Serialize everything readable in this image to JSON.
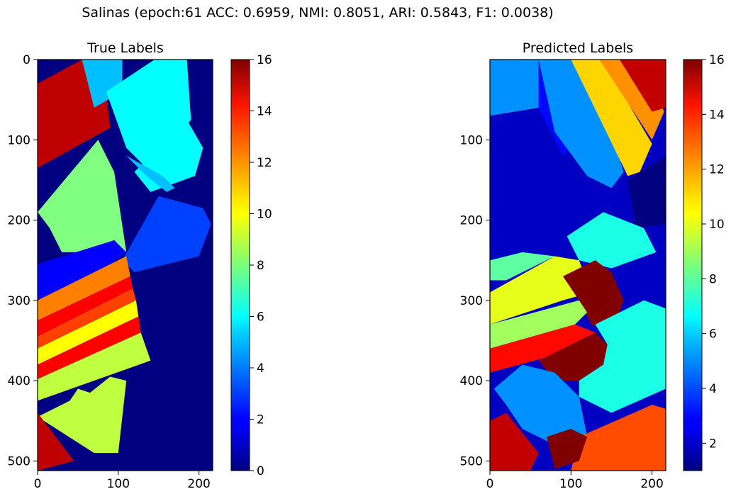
{
  "suptitle": "Salinas (epoch:61 ACC: 0.6959, NMI: 0.8051, ARI: 0.5843, F1: 0.0038)",
  "colormap": "jet",
  "chart_data": [
    {
      "type": "heatmap",
      "title": "True Labels",
      "xlim": [
        0,
        217
      ],
      "ylim": [
        512,
        0
      ],
      "xticks": [
        "0",
        "100",
        "200"
      ],
      "yticks": [
        "0",
        "100",
        "200",
        "300",
        "400",
        "500"
      ],
      "colorbar": {
        "min": 0,
        "max": 16,
        "ticks": [
          "0",
          "2",
          "4",
          "6",
          "8",
          "10",
          "12",
          "14",
          "16"
        ]
      },
      "background_label": 0,
      "regions": [
        {
          "label": 15,
          "points": [
            [
              0,
              30
            ],
            [
              55,
              0
            ],
            [
              80,
              0
            ],
            [
              90,
              85
            ],
            [
              0,
              135
            ]
          ]
        },
        {
          "label": 8,
          "points": [
            [
              0,
              190
            ],
            [
              75,
              100
            ],
            [
              95,
              140
            ],
            [
              110,
              240
            ],
            [
              30,
              240
            ],
            [
              15,
              210
            ]
          ]
        },
        {
          "label": 5,
          "points": [
            [
              55,
              0
            ],
            [
              105,
              0
            ],
            [
              105,
              40
            ],
            [
              70,
              60
            ]
          ]
        },
        {
          "label": 6,
          "points": [
            [
              85,
              40
            ],
            [
              145,
              0
            ],
            [
              185,
              0
            ],
            [
              190,
              75
            ],
            [
              140,
              140
            ],
            [
              110,
              110
            ]
          ]
        },
        {
          "label": 6,
          "points": [
            [
              120,
              140
            ],
            [
              185,
              75
            ],
            [
              205,
              110
            ],
            [
              195,
              145
            ],
            [
              140,
              165
            ]
          ]
        },
        {
          "label": 5,
          "points": [
            [
              110,
              120
            ],
            [
              155,
              145
            ],
            [
              170,
              160
            ],
            [
              160,
              165
            ],
            [
              135,
              145
            ]
          ]
        },
        {
          "label": 3,
          "points": [
            [
              105,
              250
            ],
            [
              150,
              170
            ],
            [
              205,
              185
            ],
            [
              215,
              205
            ],
            [
              200,
              245
            ],
            [
              120,
              265
            ]
          ]
        },
        {
          "label": 2,
          "points": [
            [
              0,
              255
            ],
            [
              95,
              225
            ],
            [
              110,
              240
            ],
            [
              90,
              255
            ],
            [
              0,
              310
            ]
          ]
        },
        {
          "label": 12,
          "points": [
            [
              0,
              300
            ],
            [
              110,
              245
            ],
            [
              115,
              270
            ],
            [
              0,
              325
            ]
          ]
        },
        {
          "label": 14,
          "points": [
            [
              0,
              325
            ],
            [
              115,
              270
            ],
            [
              118,
              285
            ],
            [
              0,
              345
            ]
          ]
        },
        {
          "label": 13,
          "points": [
            [
              0,
              345
            ],
            [
              118,
              285
            ],
            [
              122,
              300
            ],
            [
              0,
              360
            ]
          ]
        },
        {
          "label": 10,
          "points": [
            [
              0,
              360
            ],
            [
              122,
              300
            ],
            [
              125,
              320
            ],
            [
              0,
              380
            ]
          ]
        },
        {
          "label": 14,
          "points": [
            [
              0,
              380
            ],
            [
              125,
              320
            ],
            [
              128,
              340
            ],
            [
              0,
              398
            ]
          ]
        },
        {
          "label": 9,
          "points": [
            [
              0,
              398
            ],
            [
              128,
              340
            ],
            [
              140,
              375
            ],
            [
              0,
              425
            ]
          ]
        },
        {
          "label": 9,
          "points": [
            [
              0,
              445
            ],
            [
              40,
              425
            ],
            [
              50,
              410
            ],
            [
              65,
              415
            ],
            [
              90,
              395
            ],
            [
              110,
              400
            ],
            [
              100,
              490
            ],
            [
              70,
              490
            ]
          ]
        },
        {
          "label": 15,
          "points": [
            [
              0,
              440
            ],
            [
              45,
              500
            ],
            [
              0,
              512
            ]
          ]
        }
      ]
    },
    {
      "type": "heatmap",
      "title": "Predicted Labels",
      "xlim": [
        0,
        217
      ],
      "ylim": [
        512,
        0
      ],
      "xticks": [
        "0",
        "100",
        "200"
      ],
      "yticks": [
        "100",
        "200",
        "300",
        "400",
        "500"
      ],
      "colorbar": {
        "min": 1,
        "max": 16,
        "ticks": [
          "2",
          "4",
          "6",
          "8",
          "10",
          "12",
          "14",
          "16"
        ]
      },
      "background_label": 2,
      "regions": [
        {
          "label": 3,
          "points": [
            [
              60,
              0
            ],
            [
              150,
              0
            ],
            [
              150,
              70
            ],
            [
              120,
              80
            ],
            [
              90,
              120
            ],
            [
              60,
              60
            ]
          ]
        },
        {
          "label": 5,
          "points": [
            [
              0,
              0
            ],
            [
              60,
              0
            ],
            [
              60,
              60
            ],
            [
              0,
              70
            ]
          ]
        },
        {
          "label": 5,
          "points": [
            [
              60,
              0
            ],
            [
              100,
              0
            ],
            [
              110,
              15
            ],
            [
              140,
              60
            ],
            [
              165,
              140
            ],
            [
              150,
              160
            ],
            [
              120,
              145
            ],
            [
              80,
              90
            ]
          ]
        },
        {
          "label": 11,
          "points": [
            [
              100,
              0
            ],
            [
              135,
              0
            ],
            [
              165,
              45
            ],
            [
              200,
              105
            ],
            [
              185,
              140
            ],
            [
              170,
              145
            ]
          ]
        },
        {
          "label": 12,
          "points": [
            [
              135,
              0
            ],
            [
              160,
              0
            ],
            [
              200,
              30
            ],
            [
              215,
              65
            ],
            [
              200,
              100
            ]
          ]
        },
        {
          "label": 15,
          "points": [
            [
              160,
              0
            ],
            [
              217,
              0
            ],
            [
              217,
              60
            ],
            [
              200,
              65
            ]
          ]
        },
        {
          "label": 1,
          "points": [
            [
              170,
              150
            ],
            [
              217,
              120
            ],
            [
              217,
              205
            ],
            [
              180,
              210
            ]
          ]
        },
        {
          "label": 7,
          "points": [
            [
              95,
              220
            ],
            [
              140,
              190
            ],
            [
              190,
              210
            ],
            [
              205,
              240
            ],
            [
              150,
              260
            ],
            [
              110,
              250
            ]
          ]
        },
        {
          "label": 10,
          "points": [
            [
              0,
              290
            ],
            [
              80,
              245
            ],
            [
              110,
              250
            ],
            [
              125,
              290
            ],
            [
              90,
              300
            ],
            [
              0,
              330
            ]
          ]
        },
        {
          "label": 8,
          "points": [
            [
              0,
              250
            ],
            [
              40,
              240
            ],
            [
              80,
              245
            ],
            [
              20,
              275
            ],
            [
              0,
              275
            ]
          ]
        },
        {
          "label": 16,
          "points": [
            [
              90,
              270
            ],
            [
              130,
              250
            ],
            [
              150,
              265
            ],
            [
              165,
              300
            ],
            [
              150,
              340
            ],
            [
              125,
              330
            ],
            [
              110,
              300
            ]
          ]
        },
        {
          "label": 9,
          "points": [
            [
              0,
              330
            ],
            [
              110,
              300
            ],
            [
              120,
              315
            ],
            [
              105,
              330
            ],
            [
              0,
              360
            ]
          ]
        },
        {
          "label": 14,
          "points": [
            [
              0,
              360
            ],
            [
              105,
              330
            ],
            [
              130,
              340
            ],
            [
              110,
              360
            ],
            [
              0,
              390
            ]
          ]
        },
        {
          "label": 16,
          "points": [
            [
              60,
              375
            ],
            [
              130,
              340
            ],
            [
              145,
              355
            ],
            [
              140,
              380
            ],
            [
              110,
              400
            ],
            [
              80,
              400
            ]
          ]
        },
        {
          "label": 7,
          "points": [
            [
              130,
              330
            ],
            [
              190,
              300
            ],
            [
              217,
              310
            ],
            [
              217,
              410
            ],
            [
              150,
              440
            ],
            [
              110,
              420
            ],
            [
              110,
              400
            ],
            [
              140,
              380
            ],
            [
              145,
              355
            ]
          ]
        },
        {
          "label": 5,
          "points": [
            [
              5,
              410
            ],
            [
              40,
              380
            ],
            [
              80,
              390
            ],
            [
              110,
              420
            ],
            [
              120,
              470
            ],
            [
              80,
              480
            ],
            [
              40,
              460
            ],
            [
              20,
              430
            ]
          ]
        },
        {
          "label": 15,
          "points": [
            [
              0,
              450
            ],
            [
              20,
              440
            ],
            [
              60,
              490
            ],
            [
              50,
              512
            ],
            [
              0,
              512
            ]
          ]
        },
        {
          "label": 13,
          "points": [
            [
              110,
              470
            ],
            [
              200,
              430
            ],
            [
              217,
              435
            ],
            [
              217,
              512
            ],
            [
              100,
              512
            ]
          ]
        },
        {
          "label": 16,
          "points": [
            [
              70,
              470
            ],
            [
              100,
              460
            ],
            [
              120,
              470
            ],
            [
              110,
              500
            ],
            [
              80,
              510
            ]
          ]
        }
      ]
    }
  ]
}
